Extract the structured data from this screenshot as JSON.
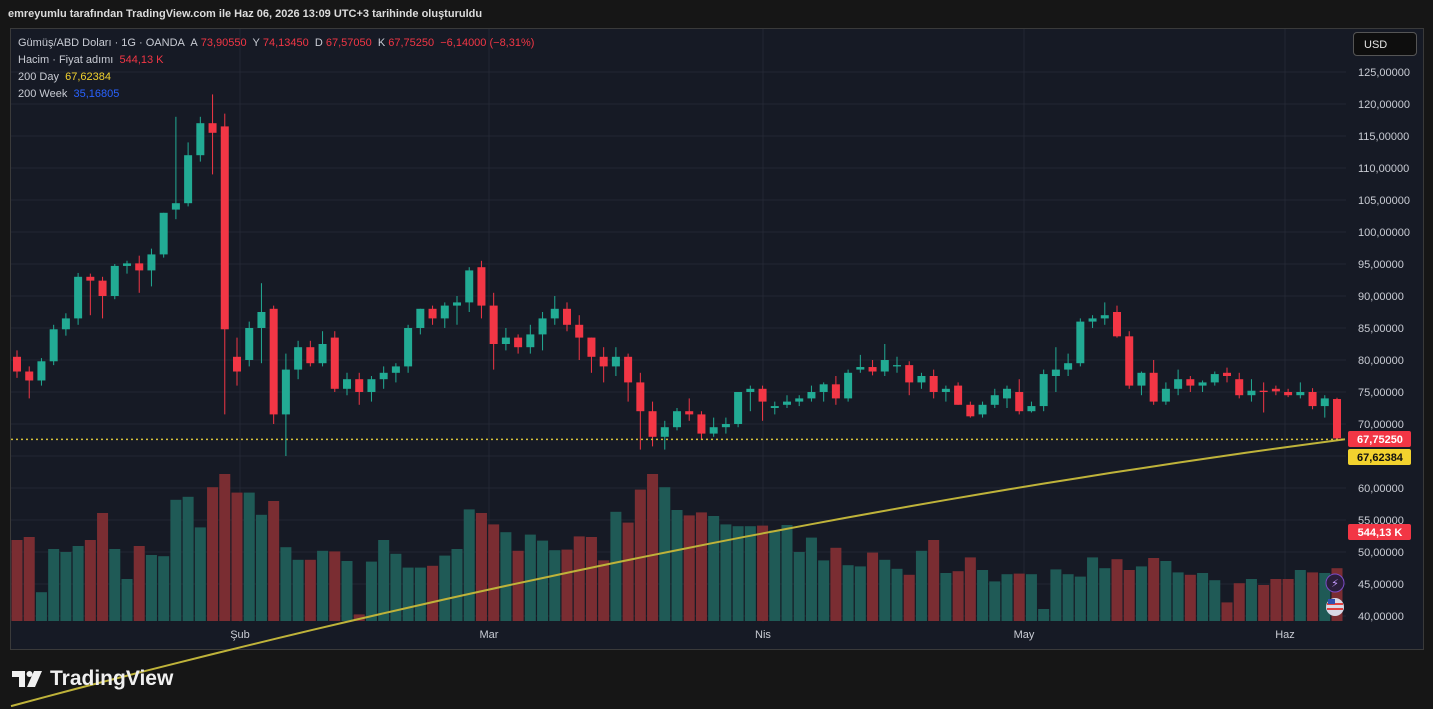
{
  "caption": "emreyumlu tarafından TradingView.com ile Haz 06, 2026 13:09 UTC+3 tarihinde oluşturuldu",
  "legend": {
    "symbol": "Gümüş/ABD Doları · 1G · OANDA",
    "o_label": "A",
    "o": "73,90550",
    "h_label": "Y",
    "h": "74,13450",
    "l_label": "D",
    "l": "67,57050",
    "c_label": "K",
    "c": "67,75250",
    "change": "−6,14000 (−8,31%)",
    "volume_label": "Hacim · Fiyat adımı",
    "volume": "544,13 K",
    "ma200d_label": "200 Day",
    "ma200d": "67,62384",
    "ma200w_label": "200 Week",
    "ma200w": "35,16805"
  },
  "currency_button": "USD",
  "brand": "TradingView",
  "badges": {
    "close": "67,75250",
    "ma": "67,62384",
    "volume": "544,13 K"
  },
  "colors": {
    "up": "#22ab94",
    "down": "#f23645",
    "vol_up": "#1f5a56",
    "vol_down": "#7a2d32",
    "ma": "#bfb33a",
    "bg": "#161a25",
    "grid": "#232733"
  },
  "chart_data": {
    "type": "candlestick",
    "y_axis": {
      "min": 40,
      "max": 125,
      "ticks": [
        "125,00000",
        "120,00000",
        "115,00000",
        "110,00000",
        "105,00000",
        "100,00000",
        "95,00000",
        "90,00000",
        "85,00000",
        "80,00000",
        "75,00000",
        "70,00000",
        "65,00000",
        "60,00000",
        "55,00000",
        "50,00000",
        "45,00000",
        "40,00000"
      ]
    },
    "x_axis": {
      "labels": [
        "Şub",
        "Mar",
        "Nis",
        "May",
        "Haz"
      ]
    },
    "candles": [
      [
        80.5,
        81.5,
        77.2,
        78.2
      ],
      [
        78.2,
        79.0,
        74.0,
        76.8
      ],
      [
        76.8,
        80.3,
        76.0,
        79.8
      ],
      [
        79.8,
        85.5,
        79.2,
        84.8
      ],
      [
        84.8,
        87.3,
        83.8,
        86.5
      ],
      [
        86.5,
        93.6,
        85.5,
        93.0
      ],
      [
        93.0,
        93.5,
        87.0,
        92.4
      ],
      [
        92.4,
        93.0,
        86.5,
        90.0
      ],
      [
        90.0,
        95.0,
        89.5,
        94.7
      ],
      [
        94.7,
        95.5,
        93.5,
        95.1
      ],
      [
        95.1,
        96.3,
        90.5,
        94.0
      ],
      [
        94.0,
        97.4,
        91.5,
        96.5
      ],
      [
        96.5,
        103.0,
        96.0,
        103.0
      ],
      [
        103.5,
        118.0,
        102.0,
        104.5
      ],
      [
        104.5,
        114.0,
        104.0,
        112.0
      ],
      [
        112.0,
        118.0,
        111.0,
        117.0
      ],
      [
        117.0,
        121.5,
        109.0,
        115.5
      ],
      [
        116.5,
        118.5,
        71.5,
        84.8
      ],
      [
        80.5,
        83.5,
        76.0,
        78.2
      ],
      [
        80.0,
        86.0,
        79.0,
        85.0
      ],
      [
        85.0,
        92.0,
        79.5,
        87.5
      ],
      [
        88.0,
        88.5,
        70.0,
        71.5
      ],
      [
        71.5,
        81.0,
        65.0,
        78.5
      ],
      [
        78.5,
        83.0,
        77.0,
        82.0
      ],
      [
        82.0,
        83.0,
        79.0,
        79.5
      ],
      [
        79.5,
        84.5,
        79.0,
        82.5
      ],
      [
        83.5,
        84.5,
        75.0,
        75.5
      ],
      [
        75.5,
        78.0,
        74.5,
        77.0
      ],
      [
        77.0,
        78.0,
        73.0,
        75.0
      ],
      [
        75.0,
        77.5,
        73.5,
        77.0
      ],
      [
        77.0,
        79.0,
        75.5,
        78.0
      ],
      [
        78.0,
        79.5,
        76.5,
        79.0
      ],
      [
        79.0,
        85.5,
        78.0,
        85.0
      ],
      [
        85.0,
        88.0,
        84.0,
        88.0
      ],
      [
        88.0,
        88.5,
        85.5,
        86.5
      ],
      [
        86.5,
        89.0,
        85.0,
        88.5
      ],
      [
        88.5,
        90.0,
        85.5,
        89.0
      ],
      [
        89.0,
        94.5,
        87.5,
        94.0
      ],
      [
        94.5,
        95.5,
        86.5,
        88.5
      ],
      [
        88.5,
        90.5,
        78.5,
        82.5
      ],
      [
        82.5,
        85.0,
        81.5,
        83.5
      ],
      [
        83.5,
        84.0,
        81.0,
        82.0
      ],
      [
        82.0,
        85.5,
        81.0,
        84.0
      ],
      [
        84.0,
        87.5,
        81.5,
        86.5
      ],
      [
        86.5,
        90.0,
        85.5,
        88.0
      ],
      [
        88.0,
        89.0,
        84.5,
        85.5
      ],
      [
        85.5,
        87.0,
        80.0,
        83.5
      ],
      [
        83.5,
        83.5,
        78.0,
        80.5
      ],
      [
        80.5,
        82.0,
        76.5,
        79.0
      ],
      [
        79.0,
        82.0,
        77.5,
        80.5
      ],
      [
        80.5,
        81.0,
        73.5,
        76.5
      ],
      [
        76.5,
        78.0,
        66.0,
        72.0
      ],
      [
        72.0,
        73.5,
        66.5,
        68.0
      ],
      [
        68.0,
        70.5,
        66.0,
        69.5
      ],
      [
        69.5,
        72.5,
        69.0,
        72.0
      ],
      [
        72.0,
        74.0,
        70.5,
        71.5
      ],
      [
        71.5,
        72.0,
        67.5,
        68.5
      ],
      [
        68.5,
        71.0,
        68.0,
        69.5
      ],
      [
        69.5,
        71.0,
        68.5,
        70.0
      ],
      [
        70.0,
        75.0,
        69.5,
        75.0
      ],
      [
        75.0,
        76.0,
        72.0,
        75.5
      ],
      [
        75.5,
        76.0,
        70.5,
        73.5
      ],
      [
        72.5,
        73.5,
        71.5,
        72.8
      ],
      [
        73.0,
        74.5,
        72.5,
        73.5
      ],
      [
        73.5,
        74.5,
        72.8,
        74.0
      ],
      [
        74.0,
        76.0,
        73.5,
        75.0
      ],
      [
        75.0,
        76.5,
        73.5,
        76.2
      ],
      [
        76.2,
        77.5,
        73.0,
        74.0
      ],
      [
        74.0,
        78.5,
        73.5,
        78.0
      ],
      [
        78.5,
        80.8,
        78.0,
        78.9
      ],
      [
        78.9,
        80.0,
        77.6,
        78.2
      ],
      [
        78.2,
        82.5,
        77.5,
        80.0
      ],
      [
        79.0,
        80.5,
        78.0,
        79.2
      ],
      [
        79.2,
        79.8,
        74.5,
        76.5
      ],
      [
        76.5,
        78.0,
        75.5,
        77.5
      ],
      [
        77.5,
        78.5,
        74.0,
        75.0
      ],
      [
        75.0,
        76.0,
        73.5,
        75.5
      ],
      [
        76.0,
        76.5,
        73.0,
        73.0
      ],
      [
        73.0,
        73.5,
        71.0,
        71.2
      ],
      [
        71.5,
        73.5,
        71.0,
        73.0
      ],
      [
        73.0,
        75.5,
        72.5,
        74.5
      ],
      [
        74.0,
        76.0,
        72.5,
        75.5
      ],
      [
        75.0,
        77.0,
        71.5,
        72.0
      ],
      [
        72.0,
        73.5,
        71.8,
        72.8
      ],
      [
        72.8,
        78.5,
        72.0,
        77.8
      ],
      [
        77.5,
        82.0,
        75.0,
        78.5
      ],
      [
        78.5,
        81.0,
        77.5,
        79.5
      ],
      [
        79.5,
        86.5,
        79.0,
        86.0
      ],
      [
        86.0,
        87.0,
        85.0,
        86.5
      ],
      [
        86.5,
        89.0,
        85.5,
        87.0
      ],
      [
        87.5,
        88.5,
        83.5,
        83.7
      ],
      [
        83.7,
        84.5,
        75.5,
        76.0
      ],
      [
        76.0,
        78.2,
        74.5,
        78.0
      ],
      [
        78.0,
        80.0,
        73.0,
        73.5
      ],
      [
        73.5,
        76.5,
        73.0,
        75.5
      ],
      [
        75.5,
        78.5,
        74.5,
        77.0
      ],
      [
        77.0,
        77.5,
        75.0,
        76.0
      ],
      [
        76.0,
        76.8,
        75.0,
        76.5
      ],
      [
        76.5,
        78.2,
        76.0,
        77.8
      ],
      [
        78.0,
        78.8,
        76.5,
        77.5
      ],
      [
        77.0,
        78.0,
        74.0,
        74.5
      ],
      [
        74.5,
        77.0,
        73.5,
        75.2
      ],
      [
        75.2,
        76.5,
        71.8,
        75.0
      ],
      [
        75.5,
        76.0,
        74.5,
        75.1
      ],
      [
        75.0,
        75.5,
        74.2,
        74.5
      ],
      [
        74.5,
        76.5,
        74.0,
        75.0
      ],
      [
        75.0,
        75.6,
        72.3,
        72.8
      ],
      [
        72.8,
        74.5,
        71.0,
        74.0
      ],
      [
        73.9,
        74.1,
        67.6,
        67.75
      ]
    ],
    "volume_k": [
      535,
      540,
      448,
      520,
      515,
      525,
      535,
      580,
      520,
      470,
      525,
      510,
      508,
      602,
      607,
      556,
      623,
      645,
      614,
      614,
      577,
      600,
      523,
      502,
      502,
      517,
      516,
      500,
      411,
      499,
      535,
      512,
      489,
      489,
      492,
      509,
      520,
      586,
      580,
      561,
      548,
      517,
      544,
      534,
      518,
      519,
      541,
      540,
      501,
      582,
      564,
      619,
      645,
      623,
      585,
      576,
      581,
      575,
      561,
      558,
      558,
      559,
      551,
      560,
      515,
      539,
      501,
      522,
      493,
      491,
      514,
      502,
      487,
      477,
      517,
      535,
      480,
      483,
      506,
      485,
      466,
      478,
      479,
      478,
      420,
      486,
      478,
      474,
      506,
      488,
      503,
      485,
      491,
      505,
      500,
      481,
      477,
      480,
      468,
      431,
      463,
      470,
      460,
      470,
      470,
      485,
      481,
      480,
      488,
      479,
      544
    ]
  }
}
